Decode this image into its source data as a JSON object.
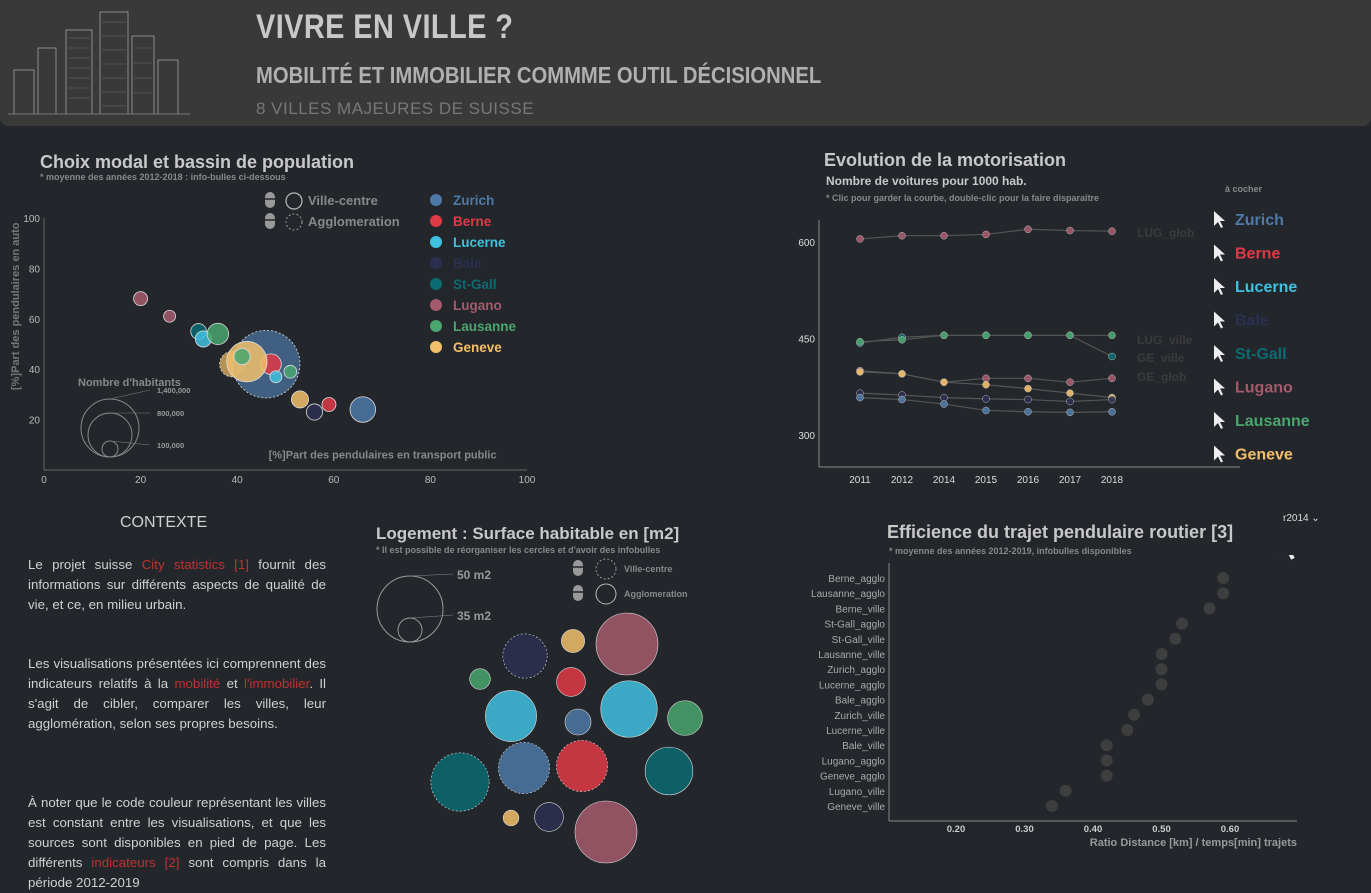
{
  "header": {
    "title": "VIVRE EN VILLE ?",
    "subtitle": "MOBILITÉ ET IMMOBILIER COMMME OUTIL DÉCISIONNEL",
    "tagline": "8 VILLES MAJEURES DE SUISSE"
  },
  "cities": [
    {
      "name": "Zurich",
      "color": "#4e79a7"
    },
    {
      "name": "Berne",
      "color": "#e03a47"
    },
    {
      "name": "Lucerne",
      "color": "#3fc1e0"
    },
    {
      "name": "Bale",
      "color": "#2b3050"
    },
    {
      "name": "St-Gall",
      "color": "#0b6b72"
    },
    {
      "name": "Lugano",
      "color": "#a55a6c"
    },
    {
      "name": "Lausanne",
      "color": "#49a66f"
    },
    {
      "name": "Geneve",
      "color": "#f2c06b"
    }
  ],
  "modal": {
    "title": "Choix modal et bassin de population",
    "note": "* moyenne des années 2012-2018 : info-bulles ci-dessous",
    "legend_ville": "Ville-centre",
    "legend_agglo": "Agglomeration",
    "size_title": "Nombre d'habitants",
    "size_labels": [
      "1,400,000",
      "800,000",
      "100,000"
    ],
    "chart_data": {
      "type": "scatter",
      "xlabel": "[%]Part des pendulaires en transport public",
      "ylabel": "[%]Part des pendulaires en auto",
      "xlim": [
        0,
        100
      ],
      "ylim": [
        0,
        100
      ],
      "xticks": [
        0,
        20,
        40,
        60,
        80,
        100
      ],
      "yticks": [
        20,
        40,
        60,
        80,
        100
      ],
      "points": [
        {
          "city": "Lugano",
          "x": 20,
          "y": 68,
          "pop": 60000,
          "type": "ville"
        },
        {
          "city": "Lugano",
          "x": 26,
          "y": 61,
          "pop": 40000,
          "type": "ville"
        },
        {
          "city": "St-Gall",
          "x": 32,
          "y": 55,
          "pop": 75000,
          "type": "ville"
        },
        {
          "city": "Lucerne",
          "x": 33,
          "y": 52,
          "pop": 80000,
          "type": "ville"
        },
        {
          "city": "Lausanne",
          "x": 36,
          "y": 54,
          "pop": 140000,
          "type": "ville"
        },
        {
          "city": "Geneve",
          "x": 39,
          "y": 42,
          "pop": 200000,
          "type": "agglo"
        },
        {
          "city": "Zurich",
          "x": 46,
          "y": 42,
          "pop": 1400000,
          "type": "agglo"
        },
        {
          "city": "Berne",
          "x": 47,
          "y": 42,
          "pop": 130000,
          "type": "ville"
        },
        {
          "city": "Geneve",
          "x": 42,
          "y": 43,
          "pop": 500000,
          "type": "ville"
        },
        {
          "city": "Lausanne",
          "x": 41,
          "y": 45,
          "pop": 80000,
          "type": "ville"
        },
        {
          "city": "Lucerne",
          "x": 48,
          "y": 37,
          "pop": 30000,
          "type": "ville"
        },
        {
          "city": "Lausanne",
          "x": 51,
          "y": 39,
          "pop": 50000,
          "type": "ville"
        },
        {
          "city": "Geneve",
          "x": 53,
          "y": 28,
          "pop": 90000,
          "type": "ville"
        },
        {
          "city": "Bale",
          "x": 56,
          "y": 23,
          "pop": 80000,
          "type": "ville"
        },
        {
          "city": "Berne",
          "x": 59,
          "y": 26,
          "pop": 60000,
          "type": "ville"
        },
        {
          "city": "Zurich",
          "x": 66,
          "y": 24,
          "pop": 200000,
          "type": "ville"
        }
      ]
    }
  },
  "moto": {
    "title": "Evolution de la motorisation",
    "subtitle": "Nombre de voitures pour 1000 hab.",
    "note": "* Clic pour garder la courbe, double-clic pour la faire disparaître",
    "legend_header": "à cocher",
    "chart_data": {
      "type": "line",
      "x": [
        "2011",
        "2012",
        "2014",
        "2015",
        "2016",
        "2017",
        "2018"
      ],
      "ylim": [
        250,
        650
      ],
      "yticks": [
        300,
        450,
        600
      ],
      "end_labels": [
        "LUG_glob",
        "LUG_ville",
        "GE_ville",
        "GE_glob"
      ],
      "series": [
        {
          "name": "Lugano",
          "values": [
            605,
            610,
            610,
            612,
            620,
            618,
            617
          ]
        },
        {
          "name": "St-Gall",
          "values": [
            443,
            452,
            455,
            455,
            455,
            455,
            422
          ]
        },
        {
          "name": "Lausanne",
          "values": [
            445,
            448,
            455,
            455,
            455,
            455,
            455
          ]
        },
        {
          "name": "Lugano",
          "values": [
            400,
            395,
            382,
            388,
            388,
            382,
            388
          ]
        },
        {
          "name": "Geneve",
          "values": [
            398,
            395,
            382,
            378,
            372,
            365,
            358
          ]
        },
        {
          "name": "Bale",
          "values": [
            365,
            362,
            358,
            356,
            355,
            352,
            355
          ]
        },
        {
          "name": "Zurich",
          "values": [
            358,
            355,
            348,
            338,
            336,
            335,
            336
          ]
        }
      ]
    }
  },
  "logement": {
    "title": "Logement : Surface habitable en [m2]",
    "note": "* Il est possible de réorganiser les cercles et d'avoir des infobulles",
    "size_labels": [
      "50 m2",
      "35 m2"
    ],
    "legend_ville": "Ville-centre",
    "legend_agglo": "Agglomeration",
    "bubbles": [
      {
        "city": "Bale",
        "value": 40,
        "type": "agglo"
      },
      {
        "city": "Geneve",
        "value": 26,
        "type": "ville"
      },
      {
        "city": "Lugano",
        "value": 50,
        "type": "ville"
      },
      {
        "city": "Lausanne",
        "value": 24,
        "type": "ville"
      },
      {
        "city": "Berne",
        "value": 30,
        "type": "ville"
      },
      {
        "city": "Lucerne",
        "value": 44,
        "type": "ville"
      },
      {
        "city": "Zurich",
        "value": 28,
        "type": "ville"
      },
      {
        "city": "Lucerne",
        "value": 47,
        "type": "ville"
      },
      {
        "city": "Lausanne",
        "value": 34,
        "type": "ville"
      },
      {
        "city": "St-Gall",
        "value": 48,
        "type": "agglo"
      },
      {
        "city": "Zurich",
        "value": 44,
        "type": "agglo"
      },
      {
        "city": "Berne",
        "value": 44,
        "type": "agglo"
      },
      {
        "city": "St-Gall",
        "value": 42,
        "type": "ville"
      },
      {
        "city": "Geneve",
        "value": 20,
        "type": "ville"
      },
      {
        "city": "Bale",
        "value": 30,
        "type": "ville"
      },
      {
        "city": "Lugano",
        "value": 50,
        "type": "ville"
      }
    ]
  },
  "efficience": {
    "title": "Efficience du trajet pendulaire routier [3]",
    "note": "* moyenne des années 2012-2019, infobulles disponibles",
    "select_value": "r2014",
    "chart_data": {
      "type": "scatter",
      "xlabel": "Ratio Distance [km] / temps[min] trajets",
      "xticks": [
        0.2,
        0.3,
        0.4,
        0.5,
        0.6
      ],
      "categories": [
        "Berne_agglo",
        "Lausanne_agglo",
        "Berne_ville",
        "St-Gall_agglo",
        "St-Gall_ville",
        "Lausanne_ville",
        "Zurich_agglo",
        "Lucerne_agglo",
        "Bale_agglo",
        "Zurich_ville",
        "Lucerne_ville",
        "Bale_ville",
        "Lugano_agglo",
        "Geneve_agglo",
        "Lugano_ville",
        "Geneve_ville"
      ],
      "values": [
        0.59,
        0.59,
        0.57,
        0.53,
        0.52,
        0.5,
        0.5,
        0.5,
        0.48,
        0.46,
        0.45,
        0.42,
        0.42,
        0.42,
        0.36,
        0.34
      ]
    }
  },
  "contexte": {
    "title": "CONTEXTE",
    "p1a": "Le projet suisse ",
    "p1link": "City statistics [1]",
    "p1b": " fournit des informations sur différents aspects de qualité de vie, et ce, en milieu urbain.",
    "p2a": "Les visualisations présentées ici comprennent des indicateurs relatifs à la ",
    "p2link1": "mobilité",
    "p2b": " et ",
    "p2link2": "l'immobilier",
    "p2c": ". Il s'agit de cibler, comparer les villes, leur agglomération, selon ses propres besoins.",
    "p3a": "À noter que le code couleur représentant les villes est constant entre les visualisations, et que les sources sont disponibles en pied de page. Les différents ",
    "p3link": "indicateurs [2]",
    "p3b": " sont compris dans la période 2012-2019"
  }
}
